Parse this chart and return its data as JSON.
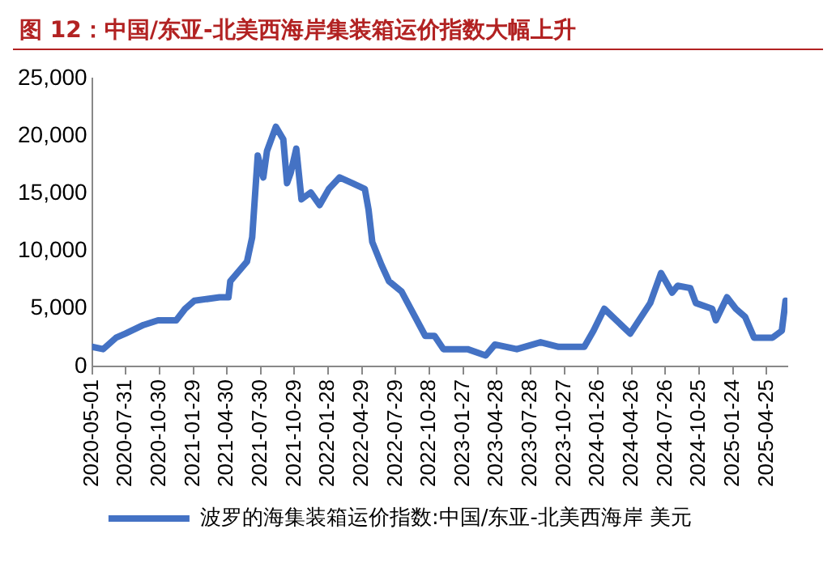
{
  "chart_data": {
    "type": "line",
    "title": "图 12：中国/东亚-北美西海岸集装箱运价指数大幅上升",
    "x": [
      "2020-05-01",
      "2020-05-31",
      "2020-07-05",
      "2020-07-30",
      "2020-09-17",
      "2020-10-26",
      "2020-12-14",
      "2021-01-07",
      "2021-02-01",
      "2021-04-10",
      "2021-05-04",
      "2021-05-09",
      "2021-06-23",
      "2021-07-07",
      "2021-07-22",
      "2021-08-06",
      "2021-08-16",
      "2021-09-09",
      "2021-09-29",
      "2021-10-09",
      "2021-10-19",
      "2021-11-03",
      "2021-11-17",
      "2021-12-12",
      "2022-01-05",
      "2022-01-30",
      "2022-02-28",
      "2022-04-03",
      "2022-05-07",
      "2022-05-17",
      "2022-05-27",
      "2022-06-21",
      "2022-07-11",
      "2022-08-14",
      "2022-10-17",
      "2022-11-11",
      "2022-12-05",
      "2023-02-08",
      "2023-03-29",
      "2023-04-23",
      "2023-06-21",
      "2023-08-24",
      "2023-10-12",
      "2023-12-20",
      "2024-01-14",
      "2024-02-12",
      "2024-04-22",
      "2024-06-15",
      "2024-07-14",
      "2024-08-13",
      "2024-08-28",
      "2024-10-01",
      "2024-10-16",
      "2024-11-29",
      "2024-12-09",
      "2025-01-08",
      "2025-02-01",
      "2025-02-26",
      "2025-03-22",
      "2025-05-11",
      "2025-06-05",
      "2025-06-15"
    ],
    "series": [
      {
        "name": "波罗的海集装箱运价指数:中国/东亚-北美西海岸 美元",
        "color": "#4472c4",
        "values": [
          1700,
          1500,
          2500,
          2850,
          3600,
          4000,
          4000,
          5000,
          5700,
          6000,
          6000,
          7400,
          9100,
          11200,
          18300,
          16400,
          18700,
          20800,
          19700,
          15900,
          16800,
          18900,
          14500,
          15100,
          14000,
          15400,
          16400,
          15900,
          15400,
          13600,
          10800,
          8800,
          7400,
          6500,
          2650,
          2650,
          1500,
          1500,
          950,
          1900,
          1500,
          2100,
          1700,
          1700,
          3100,
          5000,
          2850,
          5500,
          8100,
          6400,
          7000,
          6800,
          5500,
          5000,
          4000,
          6000,
          5000,
          4300,
          2500,
          2500,
          3100,
          5700
        ]
      }
    ],
    "xlim": [
      "2020-05-01",
      "2025-06-20"
    ],
    "xticks": [
      "2020-05-01",
      "2020-07-31",
      "2020-10-30",
      "2021-01-29",
      "2021-04-30",
      "2021-07-30",
      "2021-10-29",
      "2022-01-28",
      "2022-04-29",
      "2022-07-29",
      "2022-10-28",
      "2023-01-27",
      "2023-04-28",
      "2023-07-28",
      "2023-10-27",
      "2024-01-26",
      "2024-04-26",
      "2024-07-26",
      "2024-10-25",
      "2025-01-24",
      "2025-04-25"
    ],
    "ylim": [
      0,
      25000
    ],
    "yticks": [
      {
        "value": 0,
        "label": "0"
      },
      {
        "value": 5000,
        "label": "5,000"
      },
      {
        "value": 10000,
        "label": "10,000"
      },
      {
        "value": 15000,
        "label": "15,000"
      },
      {
        "value": 20000,
        "label": "20,000"
      },
      {
        "value": 25000,
        "label": "25,000"
      }
    ],
    "grid": false,
    "legend": "bottom",
    "marker": "none",
    "line_style": "solid"
  }
}
